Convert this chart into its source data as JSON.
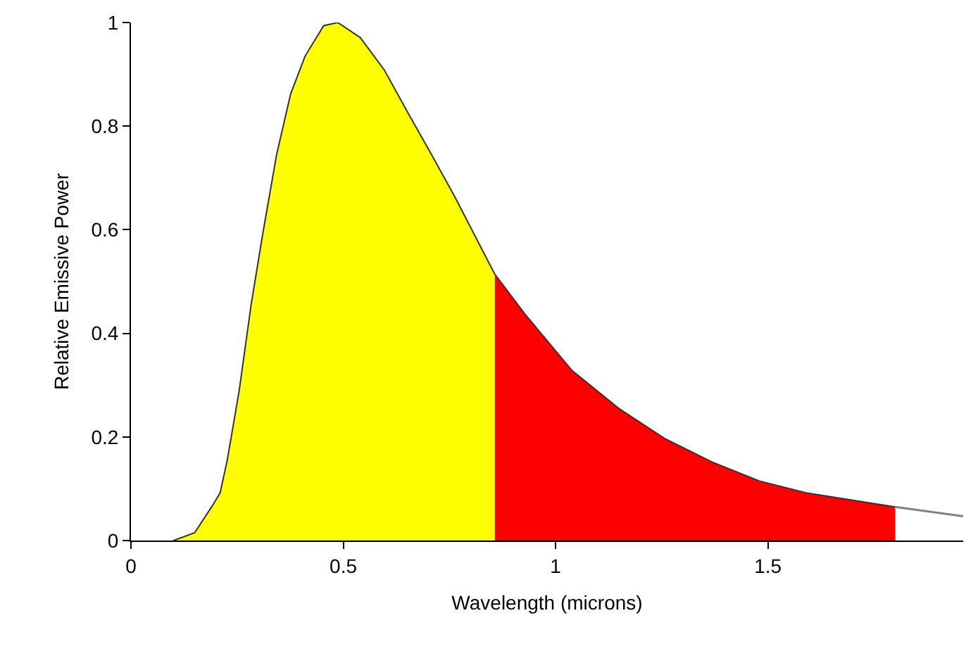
{
  "chart_data": {
    "type": "area",
    "xlabel": "Wavelength (microns)",
    "ylabel": "Relative Emissive Power",
    "xlim": [
      0,
      1.96
    ],
    "ylim": [
      0,
      1
    ],
    "xticks": [
      0,
      0.5,
      1,
      1.5
    ],
    "yticks": [
      0,
      0.2,
      0.4,
      0.6,
      0.8,
      1
    ],
    "marker": "none",
    "line_style": "solid",
    "series": [
      {
        "color": "#ffff00",
        "x": [
          0.1,
          0.15,
          0.19,
          0.21,
          0.227,
          0.255,
          0.283,
          0.31,
          0.343,
          0.376,
          0.41,
          0.454,
          0.487,
          0.54,
          0.597,
          0.652,
          0.708,
          0.763,
          0.857
        ],
        "values": [
          0,
          0.015,
          0.065,
          0.092,
          0.156,
          0.29,
          0.455,
          0.59,
          0.745,
          0.862,
          0.935,
          0.994,
          1.0,
          0.971,
          0.908,
          0.826,
          0.745,
          0.663,
          0.514
        ]
      },
      {
        "color": "#ff0000",
        "x": [
          0.857,
          0.928,
          1.039,
          1.149,
          1.259,
          1.37,
          1.48,
          1.59,
          1.8
        ],
        "values": [
          0.514,
          0.437,
          0.328,
          0.255,
          0.196,
          0.151,
          0.115,
          0.092,
          0.065
        ]
      },
      {
        "type": "line",
        "color": "#808080",
        "x": [
          1.8,
          1.96
        ],
        "values": [
          0.065,
          0.047
        ]
      }
    ]
  }
}
